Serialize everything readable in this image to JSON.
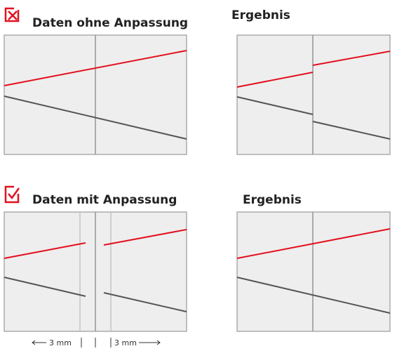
{
  "top": {
    "left_title": "Daten ohne Anpassung",
    "right_title": "Ergebnis"
  },
  "bottom": {
    "left_title": "Daten mit Anpassung",
    "right_title": "Ergebnis",
    "left_measure": "3 mm",
    "right_measure": "3 mm"
  }
}
